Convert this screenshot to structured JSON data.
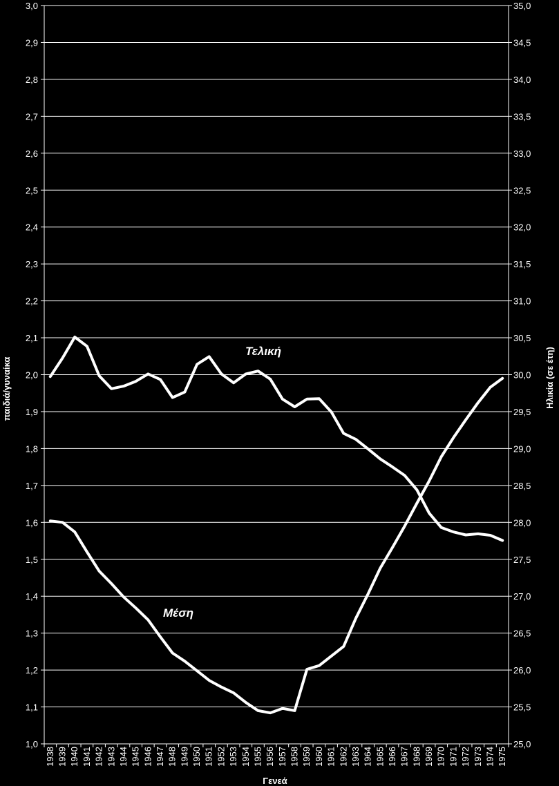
{
  "chart_data": {
    "type": "line",
    "xlabel": "Γενεά",
    "ylabel_left": "παιδιά/γυναίκα",
    "ylabel_right": "Ηλικία (σε έτη)",
    "ylim_left": [
      1.0,
      3.0
    ],
    "ylim_right": [
      25.0,
      35.0
    ],
    "y_ticks_left": [
      "1,0",
      "1,1",
      "1,2",
      "1,3",
      "1,4",
      "1,5",
      "1,6",
      "1,7",
      "1,8",
      "1,9",
      "2,0",
      "2,1",
      "2,2",
      "2,3",
      "2,4",
      "2,5",
      "2,6",
      "2,7",
      "2,8",
      "2,9",
      "3,0"
    ],
    "y_ticks_right": [
      "25,0",
      "25,5",
      "26,0",
      "26,5",
      "27,0",
      "27,5",
      "28,0",
      "28,5",
      "29,0",
      "29,5",
      "30,0",
      "30,5",
      "31,0",
      "31,5",
      "32,0",
      "32,5",
      "33,0",
      "33,5",
      "34,0",
      "34,5",
      "35,0"
    ],
    "grid": true,
    "categories": [
      "1938",
      "1939",
      "1940",
      "1941",
      "1942",
      "1943",
      "1944",
      "1945",
      "1946",
      "1947",
      "1948",
      "1949",
      "1950",
      "1951",
      "1952",
      "1953",
      "1954",
      "1955",
      "1956",
      "1957",
      "1958",
      "1959",
      "1960",
      "1961",
      "1962",
      "1963",
      "1964",
      "1965",
      "1966",
      "1967",
      "1968",
      "1969",
      "1970",
      "1971",
      "1972",
      "1973",
      "1974",
      "1975"
    ],
    "series": [
      {
        "name": "Τελική",
        "axis": "left",
        "values": [
          1.995,
          2.045,
          2.102,
          2.077,
          1.997,
          1.962,
          1.969,
          1.982,
          2.002,
          1.987,
          1.938,
          1.953,
          2.028,
          2.049,
          2.002,
          1.978,
          2.002,
          2.01,
          1.988,
          1.934,
          1.913,
          1.934,
          1.935,
          1.899,
          1.841,
          1.825,
          1.799,
          1.772,
          1.75,
          1.727,
          1.688,
          1.625,
          1.586,
          1.574,
          1.566,
          1.569,
          1.565,
          1.551
        ]
      },
      {
        "name": "Μέση",
        "axis": "right",
        "values": [
          28.02,
          28.0,
          27.87,
          27.6,
          27.34,
          27.17,
          26.99,
          26.84,
          26.68,
          26.45,
          26.23,
          26.12,
          25.99,
          25.86,
          25.77,
          25.69,
          25.56,
          25.45,
          25.42,
          25.48,
          25.45,
          26.01,
          26.06,
          26.19,
          26.32,
          26.7,
          27.03,
          27.38,
          27.66,
          27.95,
          28.26,
          28.56,
          28.89,
          29.15,
          29.39,
          29.62,
          29.83,
          29.95
        ]
      }
    ]
  }
}
